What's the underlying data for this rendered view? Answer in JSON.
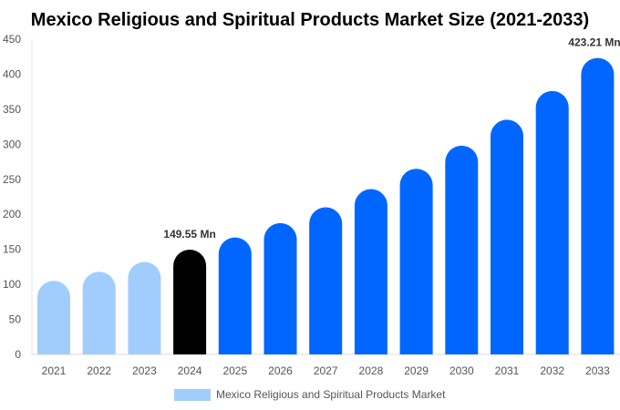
{
  "chart_data": {
    "type": "bar",
    "title": "Mexico Religious and Spiritual Products Market Size (2021-2033)",
    "categories": [
      "2021",
      "2022",
      "2023",
      "2024",
      "2025",
      "2026",
      "2027",
      "2028",
      "2029",
      "2030",
      "2031",
      "2032",
      "2033"
    ],
    "series": [
      {
        "name": "Mexico Religious and Spiritual Products Market",
        "values": [
          105,
          118,
          132,
          149.55,
          167,
          187.5,
          210,
          236,
          265,
          298,
          335,
          376,
          423.21
        ]
      }
    ],
    "data_labels": {
      "3": "149.55 Mn",
      "12": "423.21 Mn"
    },
    "ylim": [
      0,
      450
    ],
    "yticks": [
      0,
      50,
      100,
      150,
      200,
      250,
      300,
      350,
      400,
      450
    ],
    "grid": false,
    "legend_position": "bottom",
    "colors": {
      "historical": "#a0cdfc",
      "base_year": "#000000",
      "forecast": "#0066ff"
    },
    "color_groups": [
      "historical",
      "historical",
      "historical",
      "base_year",
      "forecast",
      "forecast",
      "forecast",
      "forecast",
      "forecast",
      "forecast",
      "forecast",
      "forecast",
      "forecast"
    ],
    "legend_color": "#a0cdfc"
  }
}
